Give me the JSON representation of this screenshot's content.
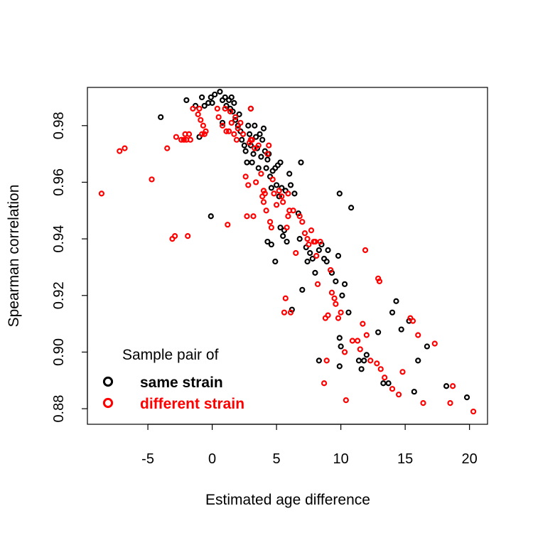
{
  "chart_data": {
    "type": "scatter",
    "xlabel": "Estimated age difference",
    "ylabel": "Spearman correlation",
    "xlim": [
      -9.7,
      21.4
    ],
    "ylim": [
      0.8745,
      0.9935
    ],
    "xticks": [
      "-5",
      "0",
      "5",
      "10",
      "15",
      "20"
    ],
    "yticks": [
      "0.88",
      "0.90",
      "0.92",
      "0.94",
      "0.96",
      "0.98"
    ],
    "grid": false,
    "legend": {
      "title": "Sample pair of",
      "placement": "bottom-left",
      "entries": [
        {
          "label": "same strain",
          "color": "#000000"
        },
        {
          "label": "different strain",
          "color": "#ff0000"
        }
      ]
    },
    "series": [
      {
        "name": "same strain",
        "color": "#000000",
        "points": [
          [
            -4.0,
            0.983
          ],
          [
            -2.0,
            0.989
          ],
          [
            -1.3,
            0.987
          ],
          [
            -1.0,
            0.976
          ],
          [
            -0.8,
            0.99
          ],
          [
            -0.6,
            0.987
          ],
          [
            -0.3,
            0.988
          ],
          [
            -0.1,
            0.99
          ],
          [
            0.0,
            0.988
          ],
          [
            0.2,
            0.991
          ],
          [
            0.6,
            0.992
          ],
          [
            0.8,
            0.989
          ],
          [
            0.8,
            0.981
          ],
          [
            1.0,
            0.99
          ],
          [
            1.1,
            0.987
          ],
          [
            1.3,
            0.989
          ],
          [
            1.4,
            0.986
          ],
          [
            1.5,
            0.99
          ],
          [
            1.6,
            0.985
          ],
          [
            1.7,
            0.988
          ],
          [
            1.8,
            0.982
          ],
          [
            2.0,
            0.98
          ],
          [
            2.1,
            0.984
          ],
          [
            2.2,
            0.978
          ],
          [
            2.3,
            0.975
          ],
          [
            2.5,
            0.973
          ],
          [
            2.6,
            0.971
          ],
          [
            2.7,
            0.967
          ],
          [
            2.8,
            0.98
          ],
          [
            2.9,
            0.977
          ],
          [
            3.0,
            0.986
          ],
          [
            3.0,
            0.973
          ],
          [
            3.1,
            0.967
          ],
          [
            3.2,
            0.97
          ],
          [
            3.3,
            0.98
          ],
          [
            3.4,
            0.976
          ],
          [
            3.5,
            0.972
          ],
          [
            3.6,
            0.965
          ],
          [
            3.7,
            0.977
          ],
          [
            3.8,
            0.969
          ],
          [
            3.9,
            0.975
          ],
          [
            4.0,
            0.979
          ],
          [
            4.1,
            0.971
          ],
          [
            4.2,
            0.965
          ],
          [
            4.3,
            0.968
          ],
          [
            4.4,
            0.97
          ],
          [
            4.5,
            0.962
          ],
          [
            4.6,
            0.958
          ],
          [
            4.7,
            0.964
          ],
          [
            4.9,
            0.965
          ],
          [
            5.0,
            0.959
          ],
          [
            5.1,
            0.966
          ],
          [
            5.2,
            0.955
          ],
          [
            5.3,
            0.967
          ],
          [
            5.4,
            0.958
          ],
          [
            5.5,
            0.941
          ],
          [
            5.6,
            0.943
          ],
          [
            5.7,
            0.957
          ],
          [
            5.8,
            0.939
          ],
          [
            6.0,
            0.963
          ],
          [
            6.1,
            0.959
          ],
          [
            6.2,
            0.915
          ],
          [
            6.4,
            0.956
          ],
          [
            6.7,
            0.949
          ],
          [
            6.9,
            0.967
          ],
          [
            7.0,
            0.922
          ],
          [
            7.3,
            0.937
          ],
          [
            7.4,
            0.932
          ],
          [
            7.6,
            0.935
          ],
          [
            7.8,
            0.933
          ],
          [
            8.0,
            0.928
          ],
          [
            8.3,
            0.936
          ],
          [
            8.5,
            0.938
          ],
          [
            8.7,
            0.933
          ],
          [
            8.9,
            0.932
          ],
          [
            9.0,
            0.936
          ],
          [
            9.3,
            0.928
          ],
          [
            9.6,
            0.925
          ],
          [
            9.8,
            0.934
          ],
          [
            9.9,
            0.905
          ],
          [
            10.0,
            0.902
          ],
          [
            10.1,
            0.92
          ],
          [
            10.3,
            0.924
          ],
          [
            10.6,
            0.914
          ],
          [
            10.8,
            0.951
          ],
          [
            11.4,
            0.897
          ],
          [
            11.6,
            0.894
          ],
          [
            11.8,
            0.897
          ],
          [
            12.0,
            0.899
          ],
          [
            12.9,
            0.907
          ],
          [
            13.3,
            0.889
          ],
          [
            13.7,
            0.889
          ],
          [
            14.0,
            0.914
          ],
          [
            14.3,
            0.918
          ],
          [
            14.7,
            0.908
          ],
          [
            15.3,
            0.911
          ],
          [
            15.7,
            0.886
          ],
          [
            16.0,
            0.897
          ],
          [
            16.7,
            0.902
          ],
          [
            18.2,
            0.888
          ],
          [
            19.8,
            0.884
          ],
          [
            -0.1,
            0.948
          ],
          [
            4.3,
            0.939
          ],
          [
            4.6,
            0.938
          ],
          [
            4.9,
            0.932
          ],
          [
            8.3,
            0.897
          ],
          [
            9.9,
            0.895
          ],
          [
            9.9,
            0.956
          ],
          [
            6.8,
            0.94
          ],
          [
            5.3,
            0.944
          ]
        ]
      },
      {
        "name": "different strain",
        "color": "#ff0000",
        "points": [
          [
            -8.6,
            0.956
          ],
          [
            -7.2,
            0.971
          ],
          [
            -6.8,
            0.972
          ],
          [
            -4.7,
            0.961
          ],
          [
            -3.5,
            0.972
          ],
          [
            -3.1,
            0.94
          ],
          [
            -2.9,
            0.941
          ],
          [
            -2.8,
            0.976
          ],
          [
            -2.4,
            0.975
          ],
          [
            -2.2,
            0.975
          ],
          [
            -2.1,
            0.977
          ],
          [
            -2.0,
            0.975
          ],
          [
            -1.9,
            0.941
          ],
          [
            -1.8,
            0.977
          ],
          [
            -1.7,
            0.975
          ],
          [
            -1.5,
            0.986
          ],
          [
            -1.1,
            0.984
          ],
          [
            -1.0,
            0.986
          ],
          [
            -0.9,
            0.982
          ],
          [
            -0.8,
            0.977
          ],
          [
            -0.7,
            0.98
          ],
          [
            -0.6,
            0.977
          ],
          [
            -0.5,
            0.978
          ],
          [
            0.4,
            0.986
          ],
          [
            0.5,
            0.983
          ],
          [
            0.8,
            0.98
          ],
          [
            1.0,
            0.986
          ],
          [
            1.1,
            0.978
          ],
          [
            1.2,
            0.945
          ],
          [
            1.3,
            0.978
          ],
          [
            1.4,
            0.985
          ],
          [
            1.5,
            0.981
          ],
          [
            1.7,
            0.977
          ],
          [
            1.8,
            0.983
          ],
          [
            1.9,
            0.975
          ],
          [
            2.0,
            0.979
          ],
          [
            2.2,
            0.981
          ],
          [
            2.4,
            0.977
          ],
          [
            2.6,
            0.962
          ],
          [
            2.7,
            0.948
          ],
          [
            2.8,
            0.959
          ],
          [
            2.9,
            0.974
          ],
          [
            3.0,
            0.986
          ],
          [
            3.1,
            0.975
          ],
          [
            3.2,
            0.948
          ],
          [
            3.3,
            0.972
          ],
          [
            3.4,
            0.96
          ],
          [
            3.6,
            0.973
          ],
          [
            3.8,
            0.963
          ],
          [
            3.9,
            0.955
          ],
          [
            4.0,
            0.953
          ],
          [
            4.1,
            0.956
          ],
          [
            4.2,
            0.95
          ],
          [
            4.3,
            0.97
          ],
          [
            4.4,
            0.973
          ],
          [
            4.5,
            0.946
          ],
          [
            4.6,
            0.944
          ],
          [
            4.7,
            0.961
          ],
          [
            4.8,
            0.956
          ],
          [
            5.0,
            0.952
          ],
          [
            5.2,
            0.957
          ],
          [
            5.4,
            0.955
          ],
          [
            5.5,
            0.953
          ],
          [
            5.6,
            0.914
          ],
          [
            5.7,
            0.919
          ],
          [
            5.8,
            0.944
          ],
          [
            5.9,
            0.948
          ],
          [
            6.0,
            0.95
          ],
          [
            6.1,
            0.914
          ],
          [
            6.3,
            0.95
          ],
          [
            6.5,
            0.935
          ],
          [
            6.8,
            0.948
          ],
          [
            7.0,
            0.946
          ],
          [
            7.2,
            0.942
          ],
          [
            7.4,
            0.94
          ],
          [
            7.5,
            0.938
          ],
          [
            7.7,
            0.943
          ],
          [
            7.9,
            0.939
          ],
          [
            8.0,
            0.939
          ],
          [
            8.1,
            0.934
          ],
          [
            8.2,
            0.924
          ],
          [
            8.4,
            0.939
          ],
          [
            8.7,
            0.889
          ],
          [
            8.8,
            0.912
          ],
          [
            8.9,
            0.897
          ],
          [
            9.0,
            0.913
          ],
          [
            9.2,
            0.929
          ],
          [
            9.3,
            0.921
          ],
          [
            9.5,
            0.919
          ],
          [
            9.6,
            0.917
          ],
          [
            9.8,
            0.912
          ],
          [
            10.0,
            0.914
          ],
          [
            10.3,
            0.9
          ],
          [
            10.4,
            0.883
          ],
          [
            10.9,
            0.904
          ],
          [
            11.3,
            0.904
          ],
          [
            11.5,
            0.901
          ],
          [
            11.7,
            0.91
          ],
          [
            11.9,
            0.936
          ],
          [
            12.0,
            0.906
          ],
          [
            12.3,
            0.897
          ],
          [
            12.8,
            0.896
          ],
          [
            12.9,
            0.926
          ],
          [
            13.0,
            0.925
          ],
          [
            13.1,
            0.894
          ],
          [
            13.4,
            0.891
          ],
          [
            14.0,
            0.887
          ],
          [
            14.5,
            0.885
          ],
          [
            14.8,
            0.893
          ],
          [
            15.4,
            0.912
          ],
          [
            15.6,
            0.911
          ],
          [
            16.0,
            0.906
          ],
          [
            16.4,
            0.882
          ],
          [
            17.3,
            0.903
          ],
          [
            18.5,
            0.882
          ],
          [
            18.7,
            0.888
          ],
          [
            20.3,
            0.879
          ],
          [
            5.9,
            0.956
          ],
          [
            3.0,
            0.975
          ],
          [
            4.0,
            0.957
          ]
        ]
      }
    ]
  }
}
